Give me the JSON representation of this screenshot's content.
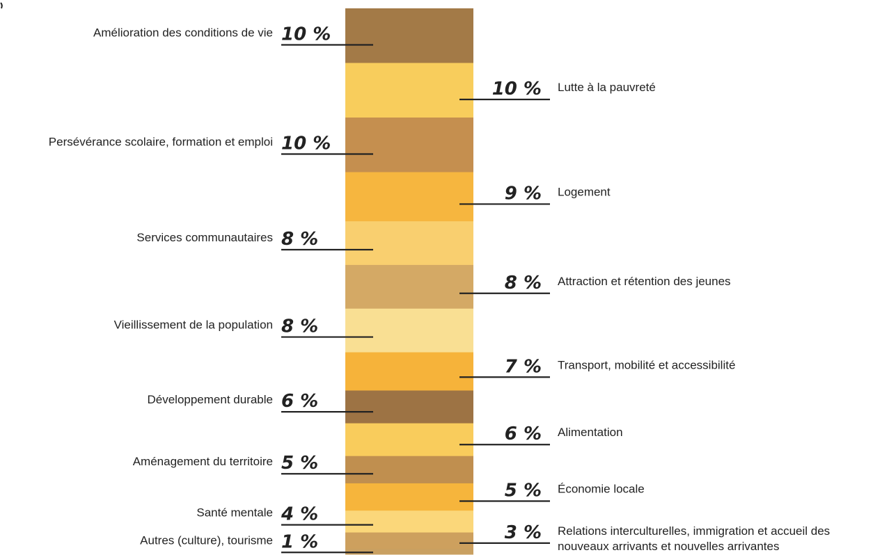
{
  "chart_data": {
    "type": "bar",
    "orientation": "stacked-vertical",
    "unit": "%",
    "categories": [
      "Amélioration des conditions de vie",
      "Lutte à la pauvreté",
      "Persévérance scolaire, formation et emploi",
      "Logement",
      "Services communautaires",
      "Attraction et rétention des jeunes",
      "Vieillissement de la population",
      "Transport, mobilité et accessibilité",
      "Développement durable",
      "Alimentation",
      "Aménagement du territoire",
      "Économie locale",
      "Santé mentale",
      "Relations interculturelles, immigration et accueil des nouveaux arrivants et nouvelles arrivantes",
      "Autres (culture), tourisme"
    ],
    "values": [
      10,
      10,
      10,
      9,
      8,
      8,
      8,
      7,
      6,
      6,
      5,
      5,
      4,
      3,
      1
    ],
    "value_labels": [
      "10 %",
      "10 %",
      "10 %",
      "9 %",
      "8 %",
      "8 %",
      "8 %",
      "7 %",
      "6 %",
      "6 %",
      "5 %",
      "5 %",
      "4 %",
      "3 %",
      "1 %"
    ],
    "label_side": [
      "left",
      "right",
      "left",
      "right",
      "left",
      "right",
      "left",
      "right",
      "left",
      "right",
      "left",
      "right",
      "left",
      "right",
      "left"
    ],
    "colors": [
      "#a37a47",
      "#f8cd5c",
      "#c58f4f",
      "#f6b63f",
      "#f9cf6f",
      "#d4a965",
      "#f9df93",
      "#f6b33a",
      "#9d7344",
      "#f9cc5c",
      "#c08f4f",
      "#f6b53c",
      "#fbd77a",
      "#cda05e",
      "#c9a061"
    ],
    "line_color": "#222222"
  }
}
